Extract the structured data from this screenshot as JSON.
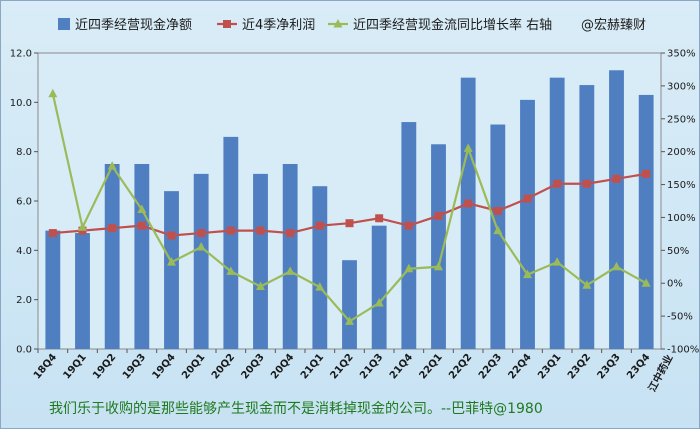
{
  "chart_data": {
    "type": "bar",
    "categories": [
      "18Q4",
      "19Q1",
      "19Q2",
      "19Q3",
      "19Q4",
      "20Q1",
      "20Q2",
      "20Q3",
      "20Q4",
      "21Q1",
      "21Q2",
      "21Q3",
      "21Q4",
      "22Q1",
      "22Q2",
      "22Q3",
      "22Q4",
      "23Q1",
      "23Q2",
      "23Q3",
      "23Q4"
    ],
    "series": [
      {
        "name": "近四季经营现金净额",
        "type": "bar",
        "axis": "left",
        "color": "#4f7fc1",
        "values": [
          4.8,
          4.7,
          7.5,
          7.5,
          6.4,
          7.1,
          8.6,
          7.1,
          7.5,
          6.6,
          3.6,
          5.0,
          9.2,
          8.3,
          11.0,
          9.1,
          10.1,
          11.0,
          10.7,
          11.3,
          10.3
        ]
      },
      {
        "name": "近4季净利润",
        "type": "line",
        "axis": "left",
        "color": "#c0504d",
        "marker": "square",
        "values": [
          4.7,
          4.8,
          4.9,
          5.0,
          4.6,
          4.7,
          4.8,
          4.8,
          4.7,
          5.0,
          5.1,
          5.3,
          5.0,
          5.4,
          5.9,
          5.6,
          6.1,
          6.7,
          6.7,
          6.9,
          7.1
        ]
      },
      {
        "name": "近四季经营现金流同比增长率 右轴",
        "type": "line",
        "axis": "right",
        "color": "#9bbb59",
        "marker": "triangle",
        "values": [
          288,
          85,
          178,
          112,
          32,
          55,
          18,
          -5,
          18,
          -6,
          -58,
          -30,
          22,
          25,
          205,
          80,
          13,
          32,
          -3,
          25,
          0
        ]
      }
    ],
    "y_left": {
      "min": 0,
      "max": 12,
      "step": 2,
      "tick_labels": [
        "0.0",
        "2.0",
        "4.0",
        "6.0",
        "8.0",
        "10.0",
        "12.0"
      ]
    },
    "y_right": {
      "min": -100,
      "max": 350,
      "step": 50,
      "tick_labels": [
        "-100%",
        "-50%",
        "0%",
        "50%",
        "100%",
        "150%",
        "200%",
        "250%",
        "300%",
        "350%"
      ]
    },
    "legend_placement": "top",
    "grid": false,
    "watermark": "@宏赫臻财",
    "company": "江中药业",
    "quote": "我们乐于收购的是那些能够产生现金而不是消耗掉现金的公司。--巴菲特@1980"
  }
}
